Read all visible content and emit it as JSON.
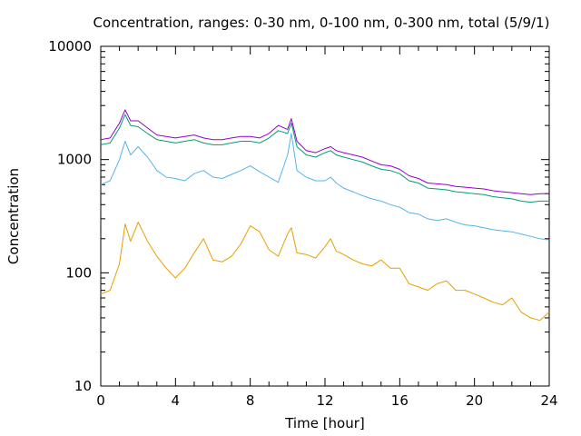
{
  "chart_data": {
    "type": "line",
    "title": "Concentration, ranges: 0-30 nm, 0-100 nm, 0-300 nm, total (5/9/1)",
    "xlabel": "Time [hour]",
    "ylabel": "Concentration",
    "xlim": [
      0,
      24
    ],
    "ylim": [
      10,
      10000
    ],
    "yscale": "log",
    "grid": false,
    "legend": "none",
    "x_ticks": [
      "0",
      "4",
      "8",
      "12",
      "16",
      "20",
      "24"
    ],
    "y_ticks": [
      "10",
      "100",
      "1000",
      "10000"
    ],
    "x": [
      0,
      0.5,
      1,
      1.3,
      1.6,
      2,
      2.5,
      3,
      3.5,
      4,
      4.5,
      5,
      5.5,
      6,
      6.5,
      7,
      7.5,
      8,
      8.5,
      9,
      9.5,
      10,
      10.2,
      10.5,
      11,
      11.5,
      12,
      12.3,
      12.6,
      13,
      13.5,
      14,
      14.5,
      15,
      15.5,
      16,
      16.5,
      17,
      17.5,
      18,
      18.5,
      19,
      19.5,
      20,
      20.5,
      21,
      21.5,
      22,
      22.5,
      23,
      23.5,
      24
    ],
    "series": [
      {
        "color": "#e69f00",
        "values": [
          65,
          70,
          120,
          270,
          190,
          280,
          190,
          140,
          110,
          90,
          110,
          150,
          200,
          130,
          125,
          140,
          180,
          260,
          230,
          160,
          140,
          220,
          250,
          150,
          145,
          135,
          170,
          200,
          155,
          145,
          130,
          120,
          115,
          130,
          110,
          110,
          80,
          75,
          70,
          80,
          85,
          70,
          70,
          65,
          60,
          55,
          52,
          60,
          45,
          40,
          38,
          45
        ]
      },
      {
        "color": "#56b4e9",
        "values": [
          600,
          650,
          1000,
          1450,
          1100,
          1300,
          1050,
          800,
          700,
          680,
          650,
          750,
          800,
          700,
          680,
          740,
          800,
          880,
          780,
          700,
          630,
          1100,
          1700,
          800,
          700,
          650,
          650,
          700,
          620,
          560,
          520,
          480,
          450,
          430,
          400,
          380,
          340,
          330,
          300,
          290,
          300,
          280,
          265,
          260,
          250,
          240,
          235,
          230,
          220,
          210,
          200,
          195
        ]
      },
      {
        "color": "#009e73",
        "values": [
          1350,
          1400,
          1900,
          2500,
          2000,
          1950,
          1700,
          1500,
          1450,
          1400,
          1450,
          1500,
          1400,
          1350,
          1350,
          1400,
          1450,
          1450,
          1400,
          1550,
          1800,
          1700,
          2100,
          1300,
          1100,
          1050,
          1150,
          1200,
          1100,
          1050,
          1000,
          950,
          880,
          820,
          800,
          750,
          650,
          620,
          560,
          550,
          540,
          520,
          510,
          500,
          490,
          470,
          460,
          450,
          430,
          420,
          430,
          430
        ]
      },
      {
        "color": "#9400d3",
        "values": [
          1500,
          1550,
          2100,
          2750,
          2200,
          2200,
          1900,
          1650,
          1600,
          1550,
          1600,
          1650,
          1550,
          1500,
          1500,
          1550,
          1600,
          1600,
          1550,
          1700,
          2000,
          1850,
          2300,
          1450,
          1200,
          1150,
          1250,
          1300,
          1200,
          1150,
          1100,
          1050,
          970,
          900,
          880,
          820,
          720,
          680,
          620,
          610,
          600,
          580,
          570,
          560,
          550,
          530,
          520,
          510,
          500,
          490,
          500,
          500
        ]
      }
    ]
  }
}
